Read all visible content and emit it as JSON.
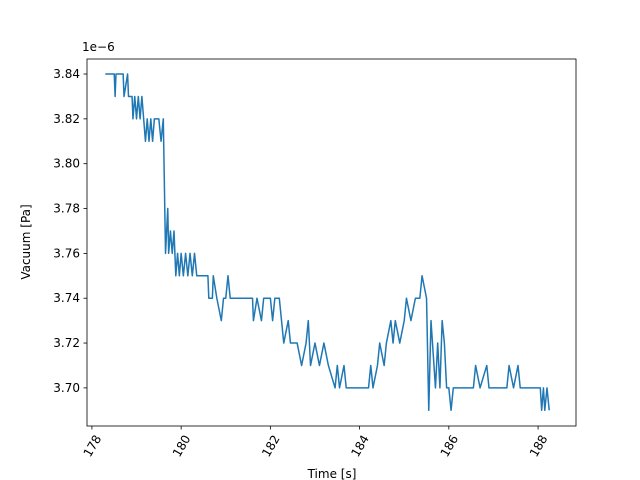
{
  "chart_data": {
    "type": "line",
    "xlabel": "Time [s]",
    "ylabel": "Vacuum [Pa]",
    "y_offset_label": "1e−6",
    "x": [
      178.3,
      178.5,
      178.52,
      178.54,
      178.7,
      178.72,
      178.8,
      178.82,
      178.9,
      178.92,
      178.96,
      179.0,
      179.04,
      179.08,
      179.12,
      179.16,
      179.2,
      179.24,
      179.28,
      179.32,
      179.36,
      179.4,
      179.45,
      179.5,
      179.55,
      179.6,
      179.65,
      179.7,
      179.72,
      179.76,
      179.8,
      179.84,
      179.88,
      179.92,
      179.96,
      180.0,
      180.05,
      180.1,
      180.15,
      180.2,
      180.25,
      180.3,
      180.35,
      180.6,
      180.62,
      180.7,
      180.72,
      180.8,
      180.9,
      180.95,
      181.0,
      181.05,
      181.1,
      181.6,
      181.62,
      181.7,
      181.8,
      181.85,
      182.0,
      182.05,
      182.1,
      182.2,
      182.25,
      182.3,
      182.4,
      182.45,
      182.6,
      182.7,
      182.8,
      182.85,
      182.9,
      183.0,
      183.1,
      183.2,
      183.3,
      183.45,
      183.5,
      183.55,
      183.65,
      183.7,
      184.2,
      184.25,
      184.3,
      184.4,
      184.45,
      184.55,
      184.6,
      184.7,
      184.75,
      184.8,
      184.9,
      185.0,
      185.05,
      185.15,
      185.25,
      185.35,
      185.4,
      185.5,
      185.55,
      185.6,
      185.7,
      185.75,
      185.8,
      185.85,
      185.9,
      185.95,
      186.0,
      186.05,
      186.1,
      186.55,
      186.6,
      186.7,
      186.85,
      186.9,
      187.3,
      187.35,
      187.45,
      187.55,
      187.6,
      188.05,
      188.08,
      188.12,
      188.15,
      188.2,
      188.25
    ],
    "series": [
      {
        "color": "#1f77b4",
        "values": [
          3.84,
          3.84,
          3.83,
          3.84,
          3.84,
          3.83,
          3.84,
          3.83,
          3.83,
          3.82,
          3.83,
          3.82,
          3.83,
          3.82,
          3.83,
          3.82,
          3.81,
          3.82,
          3.81,
          3.82,
          3.81,
          3.82,
          3.82,
          3.82,
          3.81,
          3.82,
          3.76,
          3.78,
          3.76,
          3.77,
          3.76,
          3.77,
          3.75,
          3.76,
          3.75,
          3.76,
          3.75,
          3.76,
          3.75,
          3.76,
          3.75,
          3.76,
          3.75,
          3.75,
          3.74,
          3.74,
          3.75,
          3.74,
          3.73,
          3.74,
          3.74,
          3.75,
          3.74,
          3.74,
          3.73,
          3.74,
          3.73,
          3.74,
          3.74,
          3.73,
          3.74,
          3.74,
          3.73,
          3.72,
          3.73,
          3.72,
          3.72,
          3.71,
          3.72,
          3.73,
          3.71,
          3.72,
          3.71,
          3.72,
          3.71,
          3.7,
          3.71,
          3.7,
          3.71,
          3.7,
          3.7,
          3.71,
          3.7,
          3.71,
          3.72,
          3.71,
          3.72,
          3.73,
          3.72,
          3.73,
          3.72,
          3.73,
          3.74,
          3.73,
          3.74,
          3.74,
          3.75,
          3.74,
          3.69,
          3.73,
          3.7,
          3.72,
          3.7,
          3.73,
          3.72,
          3.7,
          3.7,
          3.69,
          3.7,
          3.7,
          3.71,
          3.7,
          3.71,
          3.7,
          3.7,
          3.71,
          3.7,
          3.71,
          3.7,
          3.7,
          3.69,
          3.7,
          3.69,
          3.7,
          3.69
        ]
      }
    ],
    "xlim": [
      177.89,
      188.85
    ],
    "xticks": [
      178,
      180,
      182,
      184,
      186,
      188
    ],
    "ylim": [
      3.683,
      3.8467
    ],
    "yticks": [
      {
        "value": 3.7,
        "label": "3.70"
      },
      3.72,
      3.74,
      3.76,
      3.78,
      {
        "value": 3.8,
        "label": "3.80"
      },
      3.82,
      3.84
    ],
    "grid": false
  }
}
